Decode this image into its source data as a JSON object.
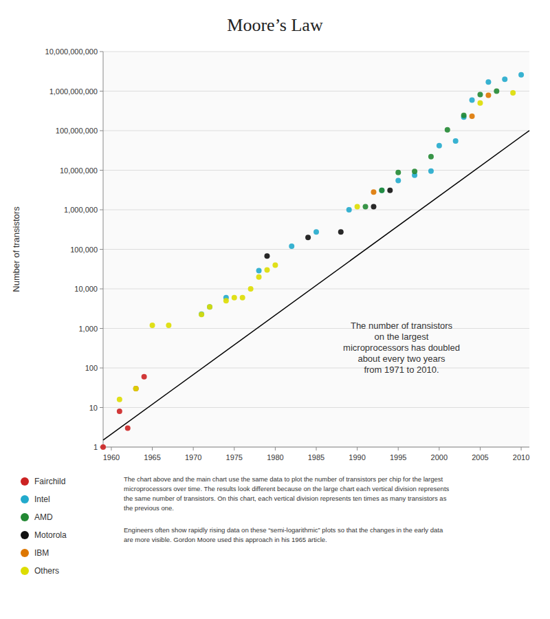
{
  "chart_data": {
    "type": "scatter",
    "title": "Moore’s Law",
    "ylabel": "Number of transistors",
    "log": "y",
    "grid": true,
    "legend": "bottom",
    "xlim": [
      1959,
      2011
    ],
    "xticks": [
      1960,
      1965,
      1970,
      1975,
      1980,
      1985,
      1990,
      1995,
      2000,
      2005,
      2010
    ],
    "ylim": [
      1,
      10000000000
    ],
    "yticks": [
      1,
      10,
      100,
      {
        "value": 1000,
        "label": "1,000"
      },
      {
        "value": 10000,
        "label": "10,000"
      },
      {
        "value": 100000,
        "label": "100,000"
      },
      {
        "value": 1000000,
        "label": "1,000,000"
      },
      {
        "value": 10000000,
        "label": "10,000,000"
      },
      {
        "value": 100000000,
        "label": "100,000,000"
      },
      {
        "value": 1000000000,
        "label": "1,000,000,000"
      },
      {
        "value": 10000000000,
        "label": "10,000,000,000"
      }
    ],
    "series": [
      {
        "type": "line",
        "line_style": "solid",
        "color": "#000000",
        "x": [
          1959,
          2011
        ],
        "values": [
          1.5,
          100663296
        ]
      },
      {
        "name": "Fairchild",
        "type": "scatter",
        "marker": "circle",
        "color": "#cc2222",
        "x": [
          1959,
          1961,
          1962,
          1963,
          1964
        ],
        "values": [
          1,
          8,
          3,
          30,
          60
        ]
      },
      {
        "name": "Intel",
        "type": "scatter",
        "marker": "circle",
        "color": "#22aacc",
        "x": [
          1971,
          1972,
          1974,
          1978,
          1982,
          1985,
          1989,
          1993,
          1995,
          1997,
          1999,
          2000,
          2002,
          2003,
          2004,
          2006,
          2008,
          2010
        ],
        "values": [
          2300,
          3500,
          6000,
          29000,
          120000,
          275000,
          1000000,
          3100000,
          5500000,
          7500000,
          9500000,
          42000000,
          55000000,
          220000000,
          592000000,
          1700000000,
          2000000000,
          2600000000
        ]
      },
      {
        "name": "AMD",
        "type": "scatter",
        "marker": "circle",
        "color": "#228833",
        "x": [
          1991,
          1993,
          1995,
          1997,
          1999,
          2001,
          2003,
          2005,
          2007
        ],
        "values": [
          1200000,
          3100000,
          8800000,
          9300000,
          22000000,
          105000000,
          243000000,
          820000000,
          1000000000
        ]
      },
      {
        "name": "Motorola",
        "type": "scatter",
        "marker": "circle",
        "color": "#111111",
        "x": [
          1979,
          1984,
          1988,
          1992,
          1994
        ],
        "values": [
          68000,
          200000,
          275000,
          1200000,
          3100000
        ]
      },
      {
        "name": "IBM",
        "type": "scatter",
        "marker": "circle",
        "color": "#dd7700",
        "x": [
          1992,
          2004,
          2006
        ],
        "values": [
          2800000,
          232000000,
          789000000
        ]
      },
      {
        "name": "Others",
        "type": "scatter",
        "marker": "circle",
        "color": "#dddd00",
        "x": [
          1961,
          1963,
          1965,
          1967,
          1971,
          1972,
          1974,
          1975,
          1976,
          1977,
          1978,
          1979,
          1980,
          1990,
          2005,
          2009
        ],
        "values": [
          16,
          30,
          1200,
          1200,
          2250,
          3500,
          5000,
          6000,
          6000,
          10000,
          20000,
          30000,
          40000,
          1200000,
          500000000,
          904000000
        ]
      }
    ],
    "annotations": [
      "The number of transistors\non the largest\nmicroprocessors has doubled\nabout every two years\nfrom 1971 to 2010.",
      "The chart above and the main chart use the same data to plot the number of transistors per chip for the largest\nmicroprocessors over time. The results look different because on the large chart each vertical division represents\nthe same number of transistors. On this chart, each vertical division represents ten times as many transistors as\nthe previous one.",
      "Engineers often show rapidly rising data on these “semi-logarithmic” plots so that the changes in the early data\nare more visible. Gordon Moore used this approach in his 1965 article."
    ]
  }
}
